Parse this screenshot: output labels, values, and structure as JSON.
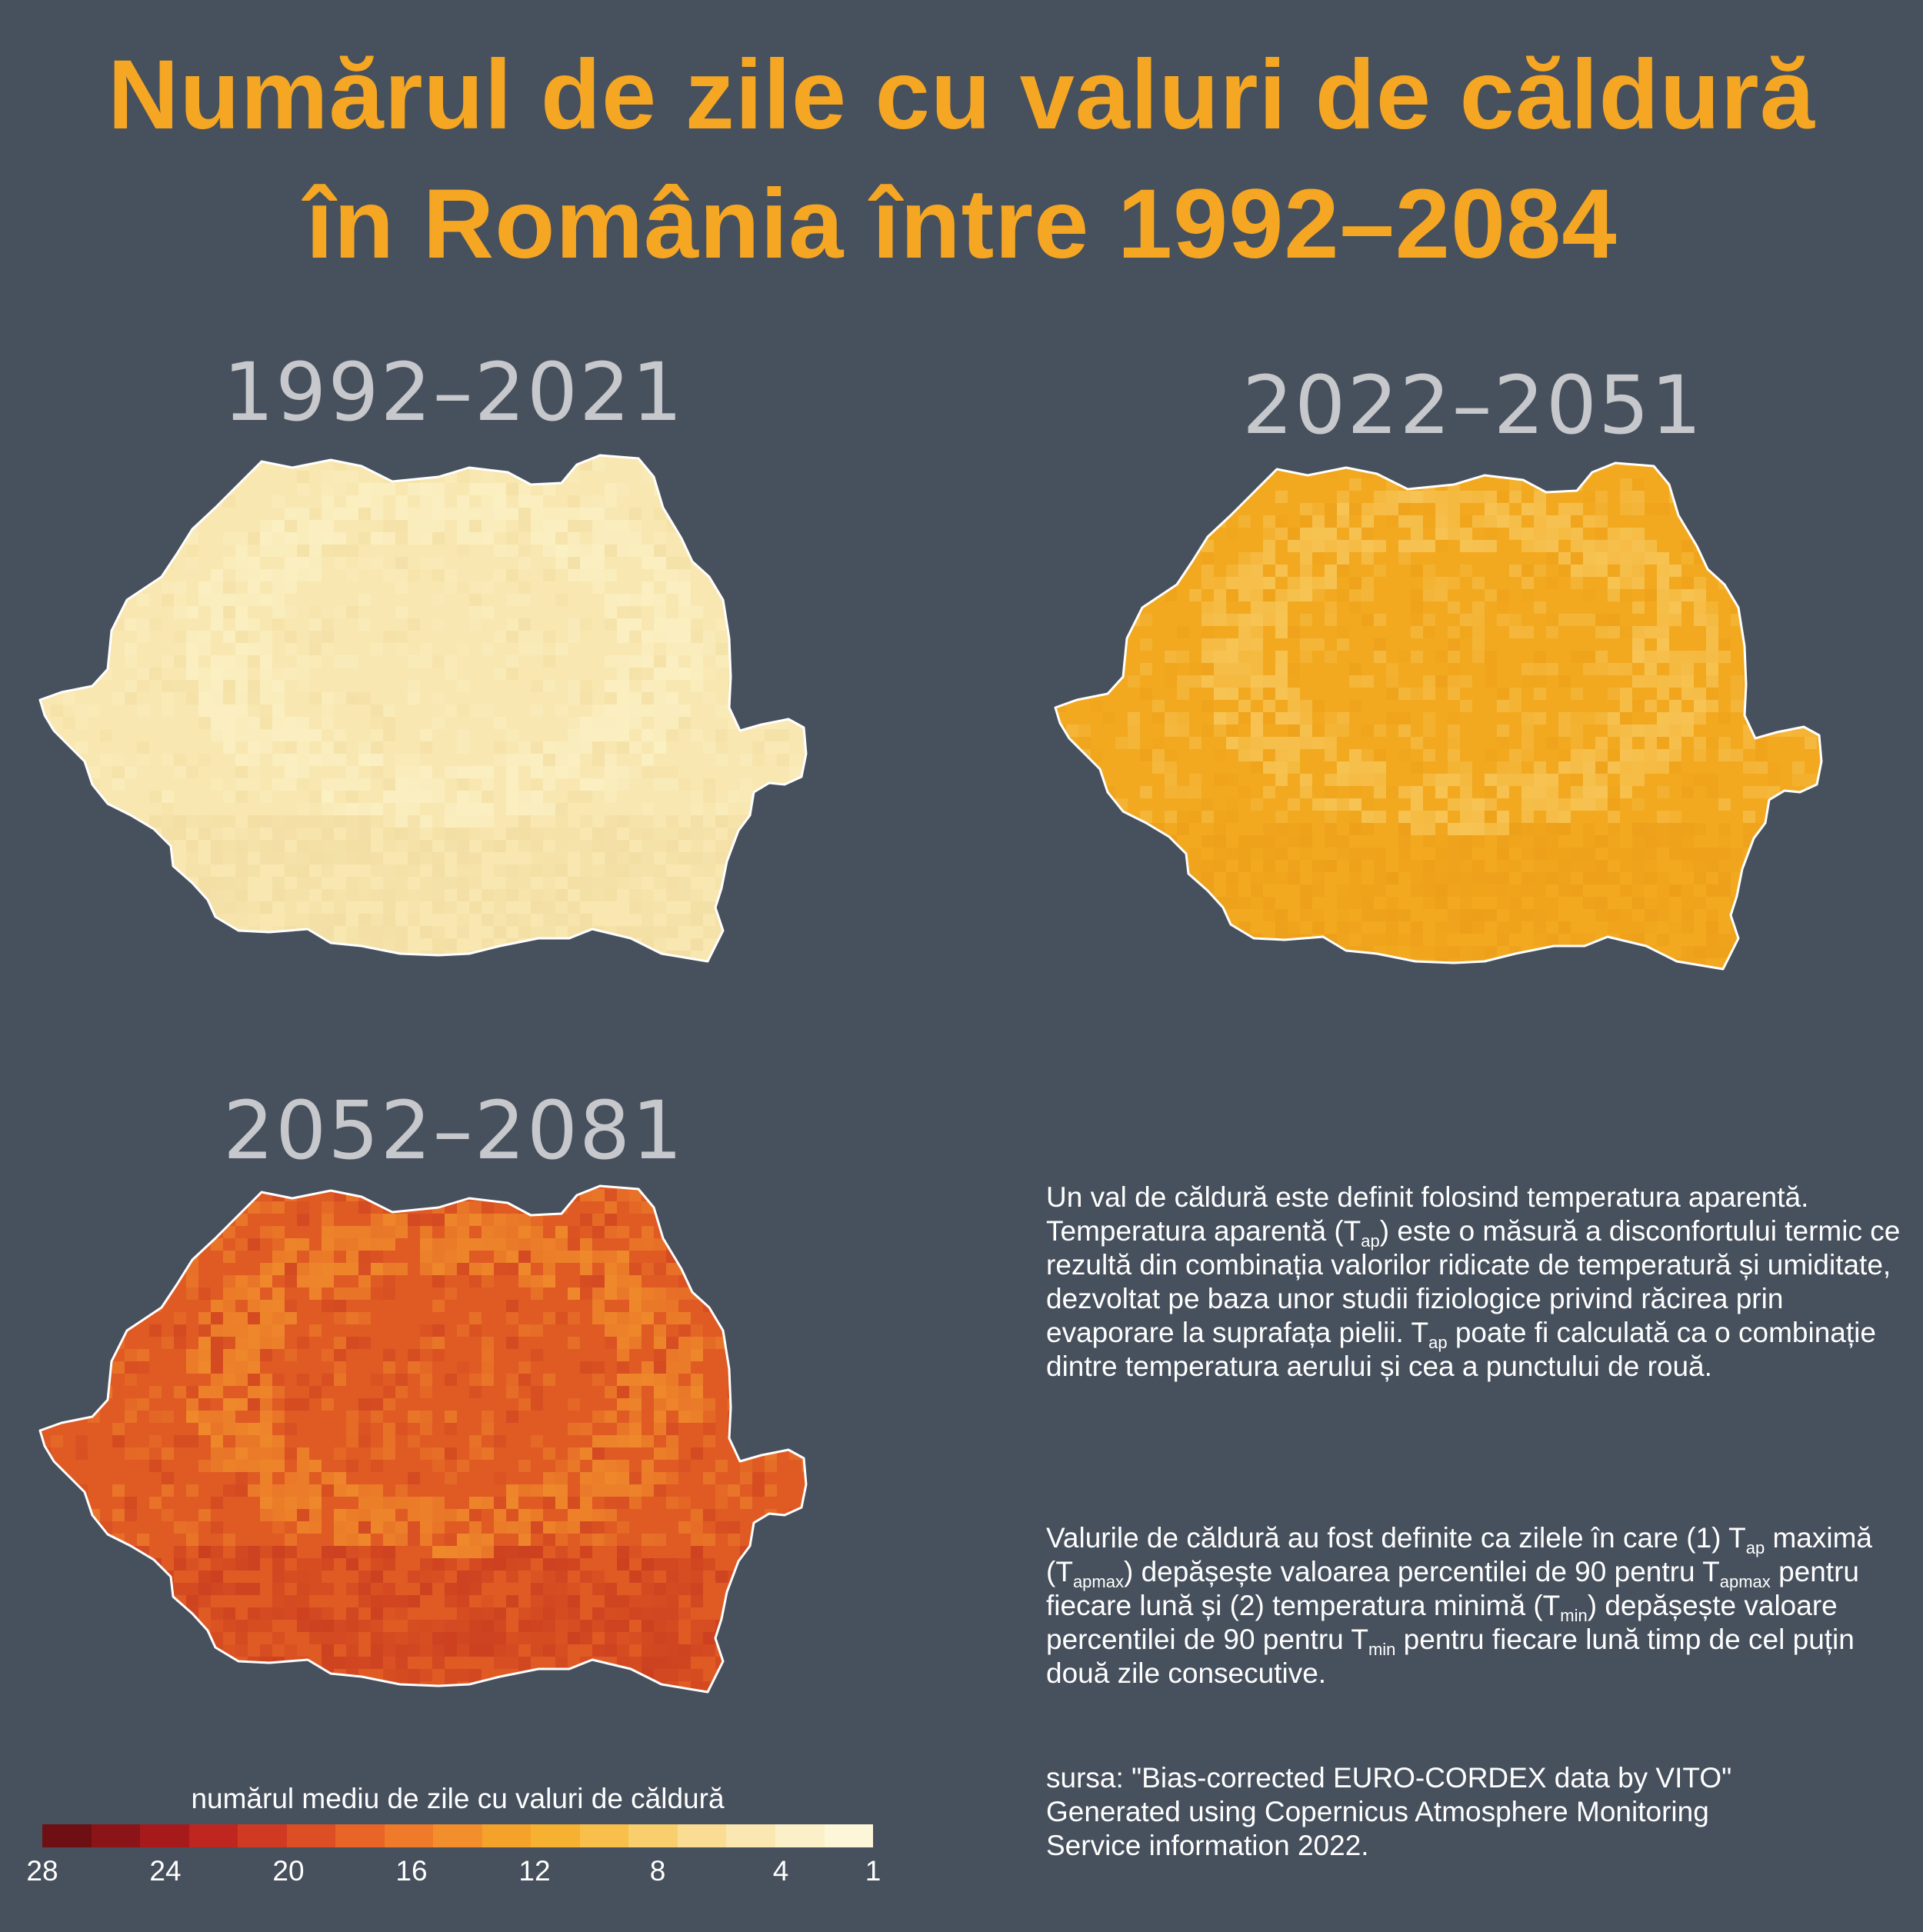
{
  "title_line1": "Numărul de zile cu valuri de căldură",
  "title_line2": "în România între 1992–2084",
  "maps": [
    {
      "period": "1992–2021",
      "level_days": 3,
      "fill": "#f8e7b0",
      "hi": "#fbf0c4",
      "lo": "#f1dca0"
    },
    {
      "period": "2022–2051",
      "level_days": 11,
      "fill": "#f2a91f",
      "hi": "#f7c65a",
      "lo": "#ec9d19"
    },
    {
      "period": "2052–2081",
      "level_days": 19,
      "fill": "#e05a24",
      "hi": "#f08d2c",
      "lo": "#c73a1f"
    }
  ],
  "description": {
    "intro": "Un val de căldură este definit folosind temperatura aparentă.",
    "tap_a": "Temperatura aparentă (T",
    "tap_sub": "ap",
    "tap_b": ") este o măsură a disconfortului termic ce rezultă din combinația valorilor ridicate de temperatură și umiditate, dezvoltat pe baza unor studii fiziologice privind răcirea prin evaporare la suprafața pielii.",
    "calc_a": "T",
    "calc_sub": "ap",
    "calc_b": " poate fi calculată ca o combinație dintre temperatura aerului și cea a punctului de rouă.",
    "def_a": "Valurile de căldură au fost definite ca zilele în care (1) T",
    "def_sub1": "ap",
    "def_b": " maximă (T",
    "def_sub2": "apmax",
    "def_c": ") depășește valoarea percentilei de 90 pentru T",
    "def_sub3": "apmax",
    "def_d": " pentru fiecare lună și (2) temperatura minimă (T",
    "def_sub4": "min",
    "def_e": ") depășește valoare percentilei de 90 pentru T",
    "def_sub5": "min",
    "def_f": " pentru fiecare lună timp de cel puțin două zile consecutive.",
    "source_1": "sursa: \"Bias-corrected EURO-CORDEX data by VITO\"",
    "source_2": "Generated using Copernicus Atmosphere Monitoring",
    "source_3": "Service information 2022."
  },
  "legend": {
    "title": "numărul mediu de zile cu valuri de căldură",
    "range": [
      28,
      1
    ],
    "ticks": [
      "28",
      "24",
      "20",
      "16",
      "12",
      "8",
      "4",
      "1"
    ],
    "tick_values": [
      28,
      24,
      20,
      16,
      12,
      8,
      4,
      1
    ],
    "colors": [
      "#6e0f14",
      "#8a1418",
      "#a61a1c",
      "#bf2620",
      "#d13a22",
      "#de4e24",
      "#e86427",
      "#ef7a2a",
      "#f28f2c",
      "#f4a22a",
      "#f6b130",
      "#f8c04a",
      "#f9cf6e",
      "#fadc92",
      "#fbe7b1",
      "#fcf0c8",
      "#fdf6d8"
    ]
  }
}
